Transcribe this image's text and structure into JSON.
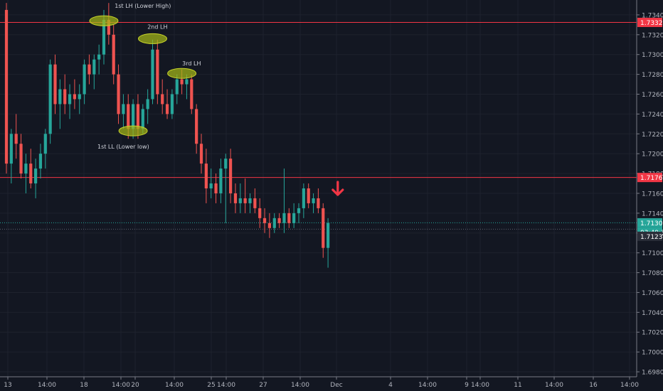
{
  "chart_data": {
    "type": "candlestick",
    "title": "",
    "ylim": [
      1.6975,
      1.7355
    ],
    "y_ticks": [
      "1.73400",
      "1.73200",
      "1.73000",
      "1.72800",
      "1.72600",
      "1.72400",
      "1.72200",
      "1.72000",
      "1.71800",
      "1.71600",
      "1.71400",
      "1.71200",
      "1.71000",
      "1.70800",
      "1.70600",
      "1.70400",
      "1.70200",
      "1.70000",
      "1.69800"
    ],
    "x_ticks": [
      "13",
      "14:00",
      "18",
      "14:00",
      "20",
      "14:00",
      "25",
      "14:00",
      "27",
      "14:00",
      "Dec",
      "4",
      "14:00",
      "9",
      "14:00",
      "11",
      "14:00",
      "16",
      "14:00"
    ],
    "horizontal_lines": [
      {
        "value": 1.73324,
        "label": "1.73324",
        "color": "#f23645"
      },
      {
        "value": 1.7176,
        "label": "1.71760",
        "color": "#f23645"
      },
      {
        "value": 1.71303,
        "label": "1.71303",
        "color": "#26a69a"
      },
      {
        "value": 1.71239,
        "label": "1.71239",
        "color": "#2a2e39"
      }
    ],
    "countdown_label": "03:49:33",
    "annotations": [
      {
        "text": "1st LH (Lower High)",
        "index": 20,
        "price": 1.7334
      },
      {
        "text": "2nd LH",
        "index": 30,
        "price": 1.7316
      },
      {
        "text": "3rd LH",
        "index": 36,
        "price": 1.7281
      },
      {
        "text": "1st LL (Lower low)",
        "index": 26,
        "price": 1.7223
      }
    ],
    "annotation_labels": [
      {
        "text": "1st LH (Lower High)",
        "index": 28,
        "price": 1.7347
      },
      {
        "text": "2nd LH",
        "index": 31,
        "price": 1.7326
      },
      {
        "text": "3rd LH",
        "index": 38,
        "price": 1.7289
      },
      {
        "text": "1st LL (Lower low)",
        "index": 24,
        "price": 1.7205
      }
    ],
    "down_arrow": {
      "index": 68,
      "price": 1.7165
    },
    "candles": [
      {
        "o": 1.7345,
        "h": 1.7352,
        "l": 1.718,
        "c": 1.719
      },
      {
        "o": 1.719,
        "h": 1.7225,
        "l": 1.717,
        "c": 1.722
      },
      {
        "o": 1.722,
        "h": 1.724,
        "l": 1.7195,
        "c": 1.721
      },
      {
        "o": 1.721,
        "h": 1.722,
        "l": 1.7175,
        "c": 1.718
      },
      {
        "o": 1.718,
        "h": 1.72,
        "l": 1.716,
        "c": 1.719
      },
      {
        "o": 1.719,
        "h": 1.7205,
        "l": 1.7165,
        "c": 1.717
      },
      {
        "o": 1.717,
        "h": 1.7195,
        "l": 1.7155,
        "c": 1.7185
      },
      {
        "o": 1.7185,
        "h": 1.721,
        "l": 1.7175,
        "c": 1.72
      },
      {
        "o": 1.72,
        "h": 1.7225,
        "l": 1.7185,
        "c": 1.722
      },
      {
        "o": 1.722,
        "h": 1.7295,
        "l": 1.721,
        "c": 1.729
      },
      {
        "o": 1.729,
        "h": 1.73,
        "l": 1.724,
        "c": 1.725
      },
      {
        "o": 1.725,
        "h": 1.7275,
        "l": 1.7225,
        "c": 1.7265
      },
      {
        "o": 1.7265,
        "h": 1.728,
        "l": 1.724,
        "c": 1.725
      },
      {
        "o": 1.725,
        "h": 1.727,
        "l": 1.7235,
        "c": 1.726
      },
      {
        "o": 1.726,
        "h": 1.7275,
        "l": 1.7245,
        "c": 1.7255
      },
      {
        "o": 1.7255,
        "h": 1.727,
        "l": 1.724,
        "c": 1.726
      },
      {
        "o": 1.726,
        "h": 1.7295,
        "l": 1.725,
        "c": 1.729
      },
      {
        "o": 1.729,
        "h": 1.73,
        "l": 1.727,
        "c": 1.728
      },
      {
        "o": 1.728,
        "h": 1.73,
        "l": 1.7265,
        "c": 1.7295
      },
      {
        "o": 1.7295,
        "h": 1.731,
        "l": 1.728,
        "c": 1.73
      },
      {
        "o": 1.73,
        "h": 1.7345,
        "l": 1.729,
        "c": 1.7335
      },
      {
        "o": 1.7335,
        "h": 1.7352,
        "l": 1.731,
        "c": 1.732
      },
      {
        "o": 1.732,
        "h": 1.733,
        "l": 1.727,
        "c": 1.728
      },
      {
        "o": 1.728,
        "h": 1.729,
        "l": 1.723,
        "c": 1.724
      },
      {
        "o": 1.724,
        "h": 1.726,
        "l": 1.7225,
        "c": 1.725
      },
      {
        "o": 1.725,
        "h": 1.726,
        "l": 1.7215,
        "c": 1.7225
      },
      {
        "o": 1.7225,
        "h": 1.7255,
        "l": 1.7215,
        "c": 1.725
      },
      {
        "o": 1.725,
        "h": 1.726,
        "l": 1.7215,
        "c": 1.7225
      },
      {
        "o": 1.7225,
        "h": 1.725,
        "l": 1.722,
        "c": 1.7245
      },
      {
        "o": 1.7245,
        "h": 1.7265,
        "l": 1.723,
        "c": 1.7255
      },
      {
        "o": 1.7255,
        "h": 1.7315,
        "l": 1.725,
        "c": 1.7305
      },
      {
        "o": 1.7305,
        "h": 1.7315,
        "l": 1.725,
        "c": 1.726
      },
      {
        "o": 1.726,
        "h": 1.7275,
        "l": 1.724,
        "c": 1.725
      },
      {
        "o": 1.725,
        "h": 1.7265,
        "l": 1.7235,
        "c": 1.724
      },
      {
        "o": 1.724,
        "h": 1.7265,
        "l": 1.7235,
        "c": 1.726
      },
      {
        "o": 1.726,
        "h": 1.728,
        "l": 1.725,
        "c": 1.7275
      },
      {
        "o": 1.7275,
        "h": 1.7285,
        "l": 1.726,
        "c": 1.727
      },
      {
        "o": 1.727,
        "h": 1.728,
        "l": 1.7255,
        "c": 1.7275
      },
      {
        "o": 1.7275,
        "h": 1.728,
        "l": 1.724,
        "c": 1.7245
      },
      {
        "o": 1.7245,
        "h": 1.725,
        "l": 1.72,
        "c": 1.721
      },
      {
        "o": 1.721,
        "h": 1.722,
        "l": 1.718,
        "c": 1.719
      },
      {
        "o": 1.719,
        "h": 1.7205,
        "l": 1.715,
        "c": 1.7165
      },
      {
        "o": 1.7165,
        "h": 1.7185,
        "l": 1.7155,
        "c": 1.717
      },
      {
        "o": 1.717,
        "h": 1.718,
        "l": 1.715,
        "c": 1.716
      },
      {
        "o": 1.716,
        "h": 1.7195,
        "l": 1.715,
        "c": 1.7185
      },
      {
        "o": 1.7185,
        "h": 1.72,
        "l": 1.713,
        "c": 1.7195
      },
      {
        "o": 1.7195,
        "h": 1.7205,
        "l": 1.715,
        "c": 1.716
      },
      {
        "o": 1.716,
        "h": 1.717,
        "l": 1.714,
        "c": 1.715
      },
      {
        "o": 1.715,
        "h": 1.717,
        "l": 1.714,
        "c": 1.7155
      },
      {
        "o": 1.7155,
        "h": 1.7175,
        "l": 1.714,
        "c": 1.715
      },
      {
        "o": 1.715,
        "h": 1.716,
        "l": 1.714,
        "c": 1.7155
      },
      {
        "o": 1.7155,
        "h": 1.7165,
        "l": 1.714,
        "c": 1.7145
      },
      {
        "o": 1.7145,
        "h": 1.7155,
        "l": 1.7125,
        "c": 1.7135
      },
      {
        "o": 1.7135,
        "h": 1.7145,
        "l": 1.712,
        "c": 1.713
      },
      {
        "o": 1.713,
        "h": 1.714,
        "l": 1.7115,
        "c": 1.7125
      },
      {
        "o": 1.7125,
        "h": 1.714,
        "l": 1.712,
        "c": 1.7135
      },
      {
        "o": 1.7135,
        "h": 1.714,
        "l": 1.7125,
        "c": 1.713
      },
      {
        "o": 1.713,
        "h": 1.7185,
        "l": 1.712,
        "c": 1.714
      },
      {
        "o": 1.714,
        "h": 1.7145,
        "l": 1.7125,
        "c": 1.713
      },
      {
        "o": 1.713,
        "h": 1.715,
        "l": 1.7125,
        "c": 1.714
      },
      {
        "o": 1.714,
        "h": 1.715,
        "l": 1.713,
        "c": 1.7145
      },
      {
        "o": 1.7145,
        "h": 1.717,
        "l": 1.7135,
        "c": 1.7165
      },
      {
        "o": 1.7165,
        "h": 1.717,
        "l": 1.7145,
        "c": 1.715
      },
      {
        "o": 1.715,
        "h": 1.716,
        "l": 1.714,
        "c": 1.7155
      },
      {
        "o": 1.7155,
        "h": 1.7165,
        "l": 1.714,
        "c": 1.7145
      },
      {
        "o": 1.7145,
        "h": 1.715,
        "l": 1.7095,
        "c": 1.7105
      },
      {
        "o": 1.7105,
        "h": 1.7135,
        "l": 1.7085,
        "c": 1.713
      }
    ]
  }
}
